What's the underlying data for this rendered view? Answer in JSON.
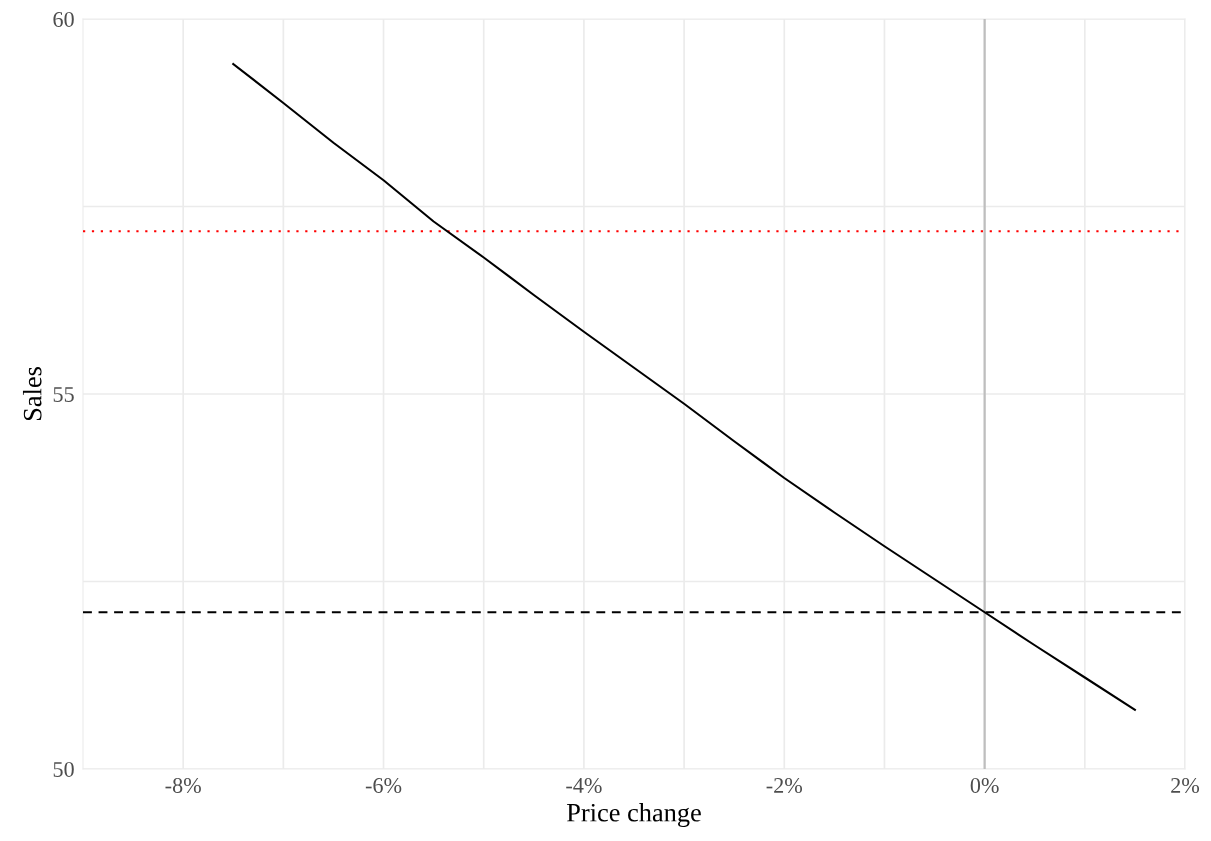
{
  "chart_data": {
    "type": "line",
    "xlabel": "Price change",
    "ylabel": "Sales",
    "x": [
      -7.5,
      -7,
      -6.5,
      -6,
      -5.5,
      -5,
      -4.5,
      -4,
      -3.5,
      -3,
      -2.5,
      -2,
      -1.5,
      -1,
      -0.5,
      0,
      0.5,
      1,
      1.5
    ],
    "series": [
      {
        "color": "#000000",
        "values": [
          59.4,
          58.88,
          58.35,
          57.85,
          57.3,
          56.82,
          56.32,
          55.83,
          55.35,
          54.87,
          54.37,
          53.88,
          53.42,
          52.97,
          52.53,
          52.09,
          51.65,
          51.22,
          50.79
        ]
      }
    ],
    "xlim": [
      -9,
      2
    ],
    "xticks": [
      {
        "value": -8,
        "label": "-8%"
      },
      {
        "value": -7,
        "label": null
      },
      {
        "value": -6,
        "label": "-6%"
      },
      {
        "value": -5,
        "label": null
      },
      {
        "value": -4,
        "label": "-4%"
      },
      {
        "value": -3,
        "label": null
      },
      {
        "value": -2,
        "label": "-2%"
      },
      {
        "value": -1,
        "label": null
      },
      {
        "value": 0,
        "label": "0%"
      },
      {
        "value": 1,
        "label": null
      },
      {
        "value": 2,
        "label": "2%"
      }
    ],
    "ylim": [
      50,
      60
    ],
    "yticks": [
      50,
      {
        "value": 52.5,
        "label": null
      },
      55,
      {
        "value": 57.5,
        "label": null
      },
      60
    ],
    "ref_lines": [
      {
        "axis": "y",
        "value": 57.17,
        "color": "#ff0000",
        "line_style": "dotted"
      },
      {
        "axis": "y",
        "value": 52.09,
        "color": "#000000",
        "line_style": "dashed"
      },
      {
        "axis": "x",
        "value": 0,
        "color": "#bebebe",
        "line_style": "solid"
      }
    ],
    "grid": true,
    "legend": false,
    "marker": "none",
    "line_style": "solid"
  }
}
